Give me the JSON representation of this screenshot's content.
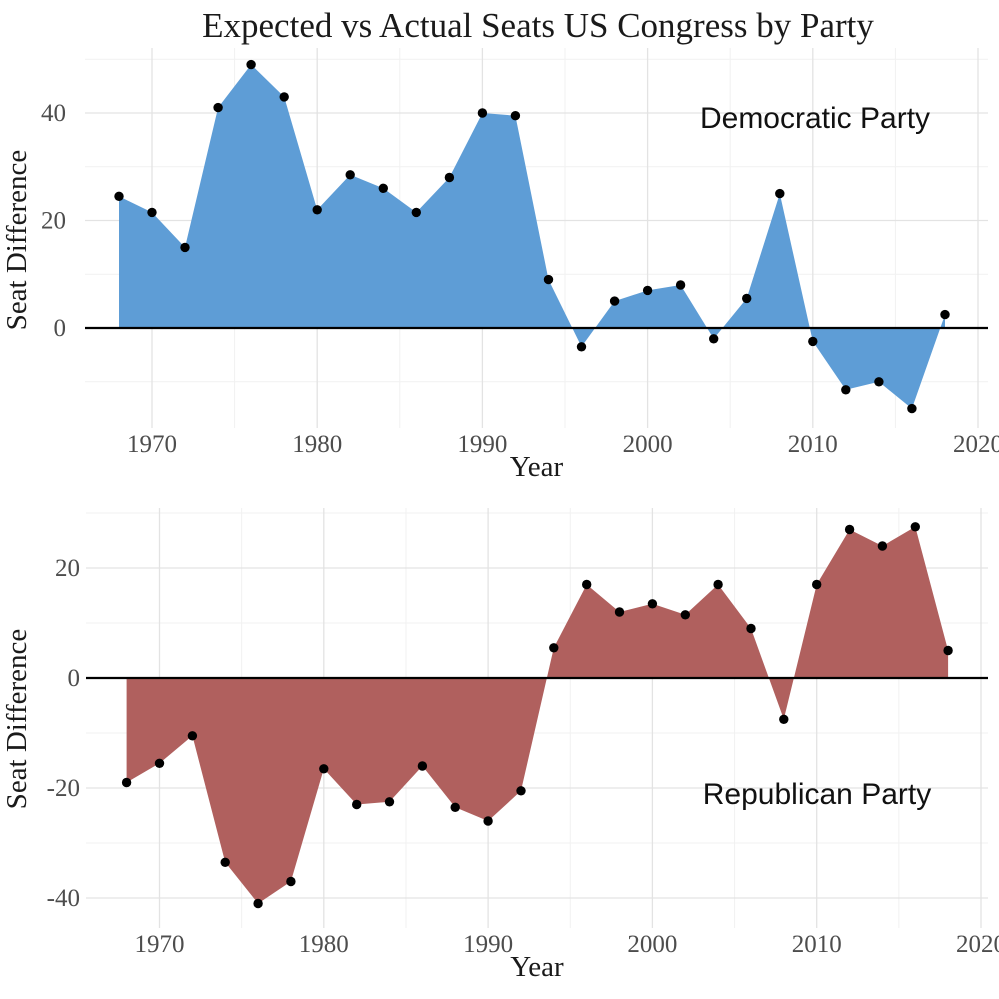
{
  "title": "Expected vs Actual Seats US Congress by Party",
  "chart_data": [
    {
      "type": "area",
      "panel": "democratic",
      "annotation": "Democratic Party",
      "fill_color": "#5E9DD6",
      "point_color": "#000000",
      "xlabel": "Year",
      "ylabel": "Seat Difference",
      "x": [
        1968,
        1970,
        1972,
        1974,
        1976,
        1978,
        1980,
        1982,
        1984,
        1986,
        1988,
        1990,
        1992,
        1994,
        1996,
        1998,
        2000,
        2002,
        2004,
        2006,
        2008,
        2010,
        2012,
        2014,
        2016,
        2018
      ],
      "values": [
        24.5,
        21.5,
        15,
        41,
        49,
        43,
        22,
        28.5,
        26,
        21.5,
        28,
        40,
        39.5,
        9,
        -3.5,
        5,
        7,
        8,
        -2,
        5.5,
        25,
        -2.5,
        -11.5,
        -10,
        -15,
        2.5
      ],
      "xticks": [
        1970,
        1980,
        1990,
        2000,
        2010,
        2020
      ],
      "yticks": [
        0,
        20,
        40
      ],
      "xlim": [
        1966,
        2021
      ],
      "ylim": [
        -19,
        52
      ],
      "baseline": 0,
      "grid": "major+minor",
      "legend": "none"
    },
    {
      "type": "area",
      "panel": "republican",
      "annotation": "Republican Party",
      "fill_color": "#B0605E",
      "point_color": "#000000",
      "xlabel": "Year",
      "ylabel": "Seat Difference",
      "x": [
        1968,
        1970,
        1972,
        1974,
        1976,
        1978,
        1980,
        1982,
        1984,
        1986,
        1988,
        1990,
        1992,
        1994,
        1996,
        1998,
        2000,
        2002,
        2004,
        2006,
        2008,
        2010,
        2012,
        2014,
        2016,
        2018
      ],
      "values": [
        -19,
        -15.5,
        -10.5,
        -33.5,
        -41,
        -37,
        -16.5,
        -23,
        -22.5,
        -16,
        -23.5,
        -26,
        -20.5,
        5.5,
        17,
        12,
        13.5,
        11.5,
        17,
        9,
        -7.5,
        17,
        27,
        24,
        27.5,
        5
      ],
      "xticks": [
        1970,
        1980,
        1990,
        2000,
        2010,
        2020
      ],
      "yticks": [
        -40,
        -20,
        0,
        20
      ],
      "xlim": [
        1966,
        2021
      ],
      "ylim": [
        -46,
        31
      ],
      "baseline": 0,
      "grid": "major+minor",
      "legend": "none"
    }
  ]
}
